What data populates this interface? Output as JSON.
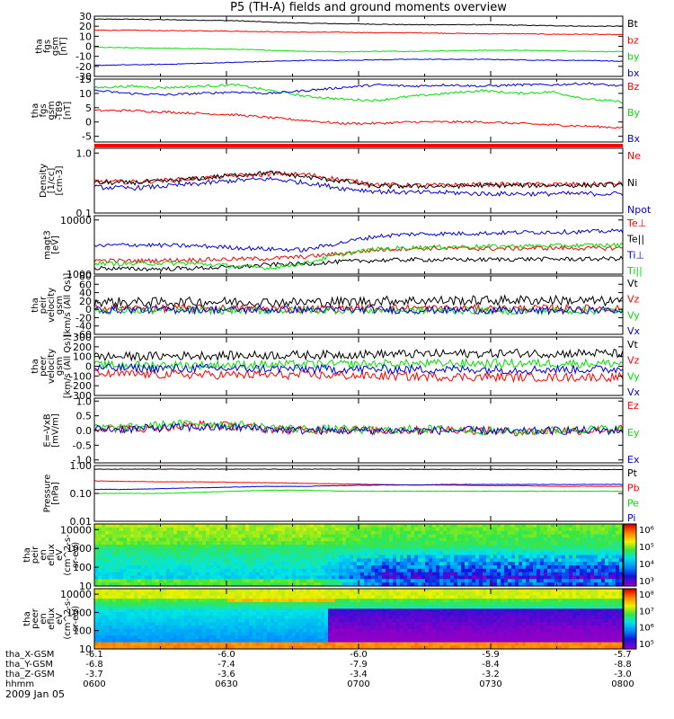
{
  "title": "P5 (TH-A) fields and ground moments overview",
  "date": "2009 Jan 05",
  "colors": {
    "black": "#000000",
    "red": "#ff0000",
    "green": "#00e000",
    "blue": "#0000e0"
  },
  "time_ticks": [
    "0600",
    "0630",
    "0700",
    "0730",
    "0800"
  ],
  "ephemeris": [
    {
      "label": "tha_X-GSM",
      "values": [
        "-6.1",
        "-6.0",
        "-6.0",
        "-5.9",
        "-5.7"
      ]
    },
    {
      "label": "tha_Y-GSM",
      "values": [
        "-6.8",
        "-7.4",
        "-7.9",
        "-8.4",
        "-8.8"
      ]
    },
    {
      "label": "tha_Z-GSM",
      "values": [
        "-3.7",
        "-3.6",
        "-3.4",
        "-3.2",
        "-3.0"
      ]
    },
    {
      "label": "hhmm",
      "values": []
    }
  ],
  "chart_data": [
    {
      "type": "line",
      "id": "p1",
      "ylabel": [
        "tha",
        "fgs",
        "gsm",
        "[nT]"
      ],
      "ylim": [
        -30,
        30
      ],
      "ticks": [
        "30",
        "20",
        "10",
        "0",
        "-10",
        "-20",
        "-30"
      ],
      "series": [
        {
          "name": "Bt",
          "color": "#000000",
          "values": [
            27,
            27,
            26.5,
            26,
            25.5,
            24,
            23,
            22.5,
            22,
            21.5,
            21.5,
            21.5,
            21,
            20.5,
            20,
            20
          ]
        },
        {
          "name": "bz",
          "color": "#ff0000",
          "values": [
            16,
            16,
            15.5,
            15.5,
            15,
            14.5,
            14,
            14,
            13.5,
            13.5,
            13,
            12.5,
            12.5,
            12,
            12,
            11.5
          ]
        },
        {
          "name": "by",
          "color": "#00e000",
          "values": [
            -1,
            -1.5,
            -2,
            -2.5,
            -3,
            -4,
            -5,
            -5.5,
            -5,
            -5,
            -4.5,
            -4,
            -4,
            -4.5,
            -5,
            -5.5
          ]
        },
        {
          "name": "bx",
          "color": "#0000e0",
          "values": [
            -19,
            -18.5,
            -18,
            -17,
            -16,
            -15,
            -14,
            -14,
            -13.5,
            -13,
            -13,
            -13,
            -13.5,
            -14,
            -14,
            -15
          ]
        }
      ]
    },
    {
      "type": "line",
      "id": "p2",
      "ylabel": [
        "tha",
        "fgs",
        "gsm",
        "-T89",
        "[nT]"
      ],
      "ylim": [
        -7,
        15
      ],
      "ticks": [
        "15",
        "10",
        "5",
        "0",
        "-5"
      ],
      "series": [
        {
          "name": "Bz",
          "color": "#ff0000",
          "values": [
            4,
            4,
            3.5,
            3,
            2.5,
            1.5,
            0.5,
            -0.5,
            -0.5,
            0,
            0,
            0,
            -0.5,
            -1,
            -1.5,
            -2
          ]
        },
        {
          "name": "By",
          "color": "#00e000",
          "values": [
            12,
            12.5,
            12,
            12.5,
            13,
            11,
            9,
            8,
            7.5,
            9,
            10,
            11,
            10,
            10.5,
            8,
            7
          ]
        },
        {
          "name": "Bx",
          "color": "#0000e0",
          "values": [
            11,
            10,
            9.5,
            10,
            10.5,
            10,
            11,
            12,
            13,
            12.5,
            13,
            12.5,
            13,
            13,
            13.5,
            12.5
          ]
        }
      ]
    },
    {
      "type": "line",
      "id": "p3",
      "log": true,
      "ylabel": [
        "Density",
        "[1/cc]",
        "[cm-3]"
      ],
      "ylim": [
        0.1,
        1.2
      ],
      "ticks": [
        "1.0",
        "0.1"
      ],
      "series": [
        {
          "name": "Ne",
          "color": "#ff0000",
          "values": [
            0.34,
            0.33,
            0.35,
            0.38,
            0.42,
            0.45,
            0.44,
            0.36,
            0.3,
            0.29,
            0.29,
            0.3,
            0.3,
            0.3,
            0.3,
            0.31
          ]
        },
        {
          "name": "Ni",
          "color": "#000000",
          "values": [
            0.32,
            0.32,
            0.34,
            0.38,
            0.43,
            0.47,
            0.4,
            0.34,
            0.28,
            0.28,
            0.28,
            0.29,
            0.29,
            0.29,
            0.29,
            0.3
          ]
        },
        {
          "name": "Npot",
          "color": "#0000e0",
          "values": [
            0.27,
            0.26,
            0.28,
            0.31,
            0.35,
            0.37,
            0.32,
            0.26,
            0.23,
            0.22,
            0.22,
            0.21,
            0.21,
            0.21,
            0.21,
            0.21
          ]
        }
      ]
    },
    {
      "type": "line",
      "id": "p4",
      "log": true,
      "ylabel": [
        "magt3",
        "[eV]"
      ],
      "ylim": [
        1000,
        12000
      ],
      "ticks": [
        "10000",
        "1000"
      ],
      "series": [
        {
          "name": "Te⊥",
          "color": "#ff0000",
          "values": [
            1800,
            1750,
            1800,
            1850,
            1900,
            1950,
            2100,
            2400,
            2800,
            3000,
            3000,
            2950,
            3000,
            3050,
            3000,
            3050
          ]
        },
        {
          "name": "Te||",
          "color": "#000000",
          "values": [
            1300,
            1250,
            1250,
            1300,
            1350,
            1500,
            1550,
            1700,
            1800,
            1850,
            1850,
            1850,
            1900,
            1900,
            1900,
            1950
          ]
        },
        {
          "name": "Ti⊥",
          "color": "#0000e0",
          "values": [
            3300,
            3500,
            3400,
            3300,
            3100,
            2900,
            2800,
            3800,
            5000,
            5500,
            5600,
            5700,
            5900,
            6000,
            6100,
            6300
          ]
        },
        {
          "name": "Ti||",
          "color": "#00e000",
          "values": [
            1600,
            1550,
            1600,
            1550,
            1400,
            1300,
            1600,
            2300,
            2900,
            3100,
            3200,
            3250,
            3300,
            3350,
            3400,
            3450
          ]
        }
      ]
    },
    {
      "type": "line",
      "id": "p5",
      "ylabel": [
        "tha",
        "peir",
        "velocity",
        "gsm",
        "[km/s (All Qs)]"
      ],
      "ylim": [
        -60,
        80
      ],
      "ticks": [
        "80",
        "60",
        "40",
        "20",
        "0",
        "-20",
        "-40",
        "-60"
      ],
      "series": [
        {
          "name": "Vt",
          "color": "#000000",
          "values": [
            18,
            17,
            17,
            18,
            18,
            17,
            17,
            18,
            20,
            21,
            21,
            21,
            22,
            22,
            20,
            19
          ]
        },
        {
          "name": "Vz",
          "color": "#ff0000",
          "values": [
            3,
            2,
            2,
            3,
            2,
            1,
            1,
            2,
            3,
            3,
            2,
            2,
            2,
            2,
            2,
            2
          ]
        },
        {
          "name": "Vy",
          "color": "#00e000",
          "values": [
            -2,
            -3,
            -3,
            -2,
            -3,
            -3,
            -2,
            -2,
            -2,
            -3,
            -3,
            -3,
            -4,
            -3,
            -3,
            -3
          ]
        },
        {
          "name": "Vx",
          "color": "#0000e0",
          "values": [
            -1,
            -1,
            -1,
            -1,
            -1,
            -1,
            -1,
            -1,
            -1,
            -2,
            -2,
            -2,
            -4,
            -3,
            -2,
            -2
          ]
        }
      ]
    },
    {
      "type": "line",
      "id": "p6",
      "ylabel": [
        "tha",
        "peer",
        "velocity",
        "gsm",
        "[km/s (All Qs)]"
      ],
      "ylim": [
        -300,
        300
      ],
      "ticks": [
        "300",
        "200",
        "100",
        "0",
        "-100",
        "-200",
        "-300"
      ],
      "series": [
        {
          "name": "Vt",
          "color": "#000000",
          "values": [
            100,
            100,
            105,
            110,
            110,
            115,
            115,
            120,
            125,
            125,
            130,
            130,
            135,
            130,
            135,
            130
          ]
        },
        {
          "name": "Vz",
          "color": "#ff0000",
          "values": [
            -80,
            -82,
            -85,
            -88,
            -90,
            -90,
            -92,
            -95,
            -100,
            -105,
            -108,
            -110,
            -112,
            -115,
            -112,
            -110
          ]
        },
        {
          "name": "Vy",
          "color": "#00e000",
          "values": [
            10,
            10,
            12,
            12,
            15,
            15,
            18,
            20,
            25,
            25,
            28,
            30,
            30,
            30,
            30,
            30
          ]
        },
        {
          "name": "Vx",
          "color": "#0000e0",
          "values": [
            -20,
            -20,
            -22,
            -22,
            -25,
            -25,
            -28,
            -30,
            -30,
            -32,
            -32,
            -33,
            -35,
            -33,
            -32,
            -30
          ]
        }
      ]
    },
    {
      "type": "line",
      "id": "p7",
      "ylabel": [
        "E=-VxB",
        "[mV/m]"
      ],
      "ylim": [
        -1.1,
        1.1
      ],
      "ticks": [
        "1.0",
        "0.5",
        "0.0",
        "-0.5",
        "-1.0"
      ],
      "series": [
        {
          "name": "Ez",
          "color": "#ff0000",
          "values": [
            0.1,
            0.05,
            0.1,
            0.2,
            0.15,
            0.05,
            0.0,
            0.05,
            0.0,
            0.0,
            0.05,
            0.0,
            -0.05,
            0.0,
            0.0,
            0.05
          ]
        },
        {
          "name": "Ey",
          "color": "#00e000",
          "values": [
            0.1,
            0.1,
            0.2,
            0.25,
            0.2,
            0.1,
            0.05,
            0.05,
            0.0,
            0.05,
            0.05,
            0.0,
            -0.05,
            0.0,
            0.05,
            0.05
          ]
        },
        {
          "name": "Ex",
          "color": "#0000e0",
          "values": [
            0.05,
            0.05,
            0.1,
            0.1,
            0.1,
            0.05,
            0.0,
            0.0,
            0.0,
            0.0,
            0.0,
            0.0,
            -0.05,
            0.0,
            0.0,
            0.0
          ]
        }
      ]
    },
    {
      "type": "line",
      "id": "p8",
      "log": true,
      "ylabel": [
        "Pressure",
        "[nPa]"
      ],
      "ylim": [
        0.01,
        1.0
      ],
      "ticks": [
        "1.00",
        "0.10",
        "0.01"
      ],
      "series": [
        {
          "name": "Pt",
          "color": "#000000",
          "values": [
            0.74,
            0.74,
            0.74,
            0.74,
            0.74,
            0.74,
            0.74,
            0.74,
            0.73,
            0.73,
            0.73,
            0.73,
            0.73,
            0.72,
            0.72,
            0.72
          ]
        },
        {
          "name": "Pb",
          "color": "#ff0000",
          "values": [
            0.28,
            0.27,
            0.26,
            0.26,
            0.25,
            0.24,
            0.23,
            0.22,
            0.21,
            0.2,
            0.2,
            0.19,
            0.19,
            0.18,
            0.18,
            0.18
          ]
        },
        {
          "name": "Pe",
          "color": "#00e000",
          "values": [
            0.1,
            0.1,
            0.1,
            0.11,
            0.12,
            0.13,
            0.13,
            0.12,
            0.12,
            0.12,
            0.12,
            0.12,
            0.12,
            0.12,
            0.12,
            0.12
          ]
        },
        {
          "name": "Pi",
          "color": "#0000e0",
          "values": [
            0.14,
            0.14,
            0.15,
            0.16,
            0.17,
            0.18,
            0.18,
            0.19,
            0.2,
            0.2,
            0.21,
            0.21,
            0.21,
            0.21,
            0.21,
            0.21
          ]
        }
      ]
    },
    {
      "type": "heatmap",
      "id": "p9",
      "ylabel": [
        "tha",
        "peir",
        "en",
        "eflux",
        "eV",
        "(cm^2-s-",
        "sr-eV)"
      ],
      "ylim": [
        10,
        20000
      ],
      "ticks": [
        "10000",
        "1000",
        "100",
        "10"
      ],
      "colorbar": {
        "ticks": [
          "10⁶",
          "10⁵",
          "10⁴",
          "10³"
        ]
      }
    },
    {
      "type": "heatmap",
      "id": "p10",
      "ylabel": [
        "tha",
        "peer",
        "en",
        "eflux",
        "eV",
        "(cm^2-s-",
        "sr-eV)"
      ],
      "ylim": [
        10,
        20000
      ],
      "ticks": [
        "10000",
        "1000",
        "100",
        "10"
      ],
      "colorbar": {
        "ticks": [
          "10⁸",
          "10⁷",
          "10⁶",
          "10⁵"
        ]
      }
    }
  ]
}
